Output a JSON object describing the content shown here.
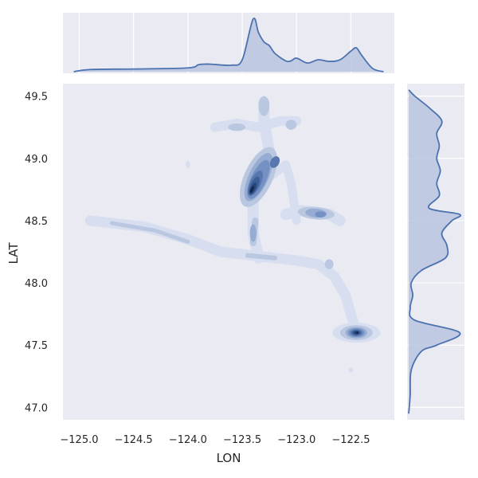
{
  "chart_data": {
    "type": "kde-joint",
    "xlabel": "LON",
    "ylabel": "LAT",
    "xlim": [
      -125.15,
      -122.1
    ],
    "ylim": [
      46.9,
      49.6
    ],
    "x_ticks": [
      -125.0,
      -124.5,
      -124.0,
      -123.5,
      -123.0,
      -122.5
    ],
    "x_tick_labels": [
      "−125.0",
      "−124.5",
      "−124.0",
      "−123.5",
      "−123.0",
      "−122.5"
    ],
    "y_ticks": [
      47.0,
      47.5,
      48.0,
      48.5,
      49.0,
      49.5
    ],
    "y_tick_labels": [
      "47.0",
      "47.5",
      "48.0",
      "48.5",
      "49.0",
      "49.5"
    ],
    "grid": true,
    "colors": {
      "plot_bg": "#eaeaf2",
      "grid": "#ffffff",
      "line": "#4c72b0",
      "fill": "#b8c4df",
      "contour_levels": [
        "#d7def0",
        "#b9c7e1",
        "#97acd3",
        "#7591c3",
        "#5877af",
        "#3d5d98",
        "#264679",
        "#13284a"
      ]
    },
    "joint_density_peaks": [
      {
        "lon": -123.35,
        "lat": 48.8,
        "density": 1.0
      },
      {
        "lon": -122.45,
        "lat": 47.6,
        "density": 0.92
      },
      {
        "lon": -123.2,
        "lat": 48.97,
        "density": 0.65
      },
      {
        "lon": -122.8,
        "lat": 48.55,
        "density": 0.45
      },
      {
        "lon": -123.4,
        "lat": 48.4,
        "density": 0.4
      },
      {
        "lon": -123.3,
        "lat": 49.4,
        "density": 0.35
      },
      {
        "lon": -123.55,
        "lat": 48.22,
        "density": 0.35
      },
      {
        "lon": -124.55,
        "lat": 48.45,
        "density": 0.25
      },
      {
        "lon": -122.7,
        "lat": 48.1,
        "density": 0.25
      },
      {
        "lon": -122.5,
        "lat": 47.3,
        "density": 0.12
      }
    ],
    "marginal_x": {
      "x": [
        -125.05,
        -124.9,
        -124.5,
        -124.0,
        -123.9,
        -123.8,
        -123.6,
        -123.5,
        -123.4,
        -123.35,
        -123.3,
        -123.25,
        -123.2,
        -123.1,
        -123.05,
        -123.0,
        -122.9,
        -122.8,
        -122.7,
        -122.6,
        -122.5,
        -122.45,
        -122.4,
        -122.3,
        -122.2
      ],
      "density": [
        0.0,
        0.04,
        0.05,
        0.07,
        0.13,
        0.14,
        0.12,
        0.22,
        0.97,
        0.72,
        0.55,
        0.48,
        0.34,
        0.2,
        0.2,
        0.25,
        0.16,
        0.22,
        0.19,
        0.22,
        0.38,
        0.44,
        0.3,
        0.06,
        0.0
      ]
    },
    "marginal_y": {
      "y": [
        46.95,
        47.1,
        47.3,
        47.45,
        47.5,
        47.6,
        47.7,
        47.8,
        47.9,
        48.0,
        48.1,
        48.2,
        48.3,
        48.4,
        48.5,
        48.55,
        48.6,
        48.7,
        48.8,
        48.9,
        49.0,
        49.1,
        49.2,
        49.3,
        49.4,
        49.5,
        49.55
      ],
      "density": [
        0.0,
        0.03,
        0.05,
        0.25,
        0.55,
        1.0,
        0.12,
        0.03,
        0.08,
        0.05,
        0.25,
        0.72,
        0.75,
        0.65,
        0.85,
        1.0,
        0.4,
        0.6,
        0.55,
        0.62,
        0.55,
        0.6,
        0.55,
        0.65,
        0.42,
        0.12,
        0.0
      ]
    }
  }
}
